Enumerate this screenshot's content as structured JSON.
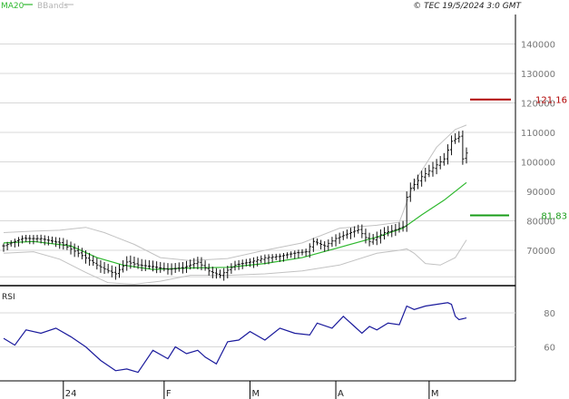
{
  "header": {
    "legend_ma": "MA20",
    "legend_bb": "BBands",
    "copyright": "© TEC 19/5/2024 3:0 GMT"
  },
  "colors": {
    "ma": "#2eb82e",
    "bb": "#c2c2c2",
    "price_bars": "#111111",
    "rsi_line": "#1a1a9c",
    "resistance": "#b00000",
    "support": "#189c18",
    "grid": "#d8d8d8",
    "panel_border": "#000000",
    "axis_text": "#777777"
  },
  "chart_data": [
    {
      "type": "ohlc",
      "title": "",
      "ylim": [
        58,
        150
      ],
      "yticks": [
        70,
        80,
        90,
        100,
        110,
        120,
        130,
        140
      ],
      "ytick_labels": [
        "70000",
        "80000",
        "90000",
        "100000",
        "110000",
        "120000",
        "130000",
        "140000"
      ],
      "x_start_label": "24",
      "xticks": [
        {
          "label": "24",
          "index": 16
        },
        {
          "label": "F",
          "index": 43
        },
        {
          "label": "M",
          "index": 66
        },
        {
          "label": "A",
          "index": 89
        },
        {
          "label": "M",
          "index": 114
        }
      ],
      "bar_count": 125,
      "key_points": [
        [
          0,
          71.5
        ],
        [
          5,
          74
        ],
        [
          10,
          74
        ],
        [
          15,
          72.5
        ],
        [
          20,
          69
        ],
        [
          25,
          65
        ],
        [
          28,
          63
        ],
        [
          30,
          62
        ],
        [
          33,
          66
        ],
        [
          36,
          65
        ],
        [
          40,
          64.5
        ],
        [
          44,
          63.5
        ],
        [
          48,
          64
        ],
        [
          52,
          66
        ],
        [
          55,
          63
        ],
        [
          58,
          61.5
        ],
        [
          62,
          65
        ],
        [
          66,
          66
        ],
        [
          70,
          67.5
        ],
        [
          74,
          68
        ],
        [
          78,
          69
        ],
        [
          81,
          69.5
        ],
        [
          83,
          73
        ],
        [
          86,
          71.5
        ],
        [
          89,
          74
        ],
        [
          92,
          75.5
        ],
        [
          95,
          77
        ],
        [
          98,
          73
        ],
        [
          102,
          76
        ],
        [
          105,
          77
        ],
        [
          107,
          78
        ],
        [
          108,
          88
        ],
        [
          109,
          91
        ],
        [
          112,
          95
        ],
        [
          115,
          98
        ],
        [
          118,
          101
        ],
        [
          120,
          107
        ],
        [
          122,
          108.5
        ],
        [
          123,
          101
        ],
        [
          124,
          103
        ]
      ],
      "ma20": {
        "name": "MA20",
        "key_points": [
          [
            0,
            72.5
          ],
          [
            8,
            73
          ],
          [
            18,
            71.5
          ],
          [
            25,
            67.5
          ],
          [
            32,
            65
          ],
          [
            40,
            63.5
          ],
          [
            50,
            64
          ],
          [
            60,
            64.2
          ],
          [
            70,
            65.5
          ],
          [
            80,
            67.5
          ],
          [
            90,
            71
          ],
          [
            100,
            74.5
          ],
          [
            107,
            77.5
          ],
          [
            112,
            82
          ],
          [
            118,
            87
          ],
          [
            124,
            93
          ]
        ]
      },
      "bb_upper": {
        "name": "BBands",
        "key_points": [
          [
            0,
            76
          ],
          [
            8,
            76.5
          ],
          [
            15,
            76.8
          ],
          [
            22,
            77.8
          ],
          [
            27,
            76
          ],
          [
            35,
            72
          ],
          [
            42,
            67.5
          ],
          [
            50,
            66.5
          ],
          [
            60,
            67.2
          ],
          [
            70,
            70
          ],
          [
            80,
            72.5
          ],
          [
            90,
            77.5
          ],
          [
            100,
            78.5
          ],
          [
            106,
            79.5
          ],
          [
            110,
            93
          ],
          [
            116,
            105
          ],
          [
            121,
            111
          ],
          [
            124,
            112.5
          ]
        ]
      },
      "bb_lower": {
        "name": "BBands",
        "key_points": [
          [
            0,
            69
          ],
          [
            8,
            69.5
          ],
          [
            15,
            67
          ],
          [
            22,
            62.5
          ],
          [
            28,
            59
          ],
          [
            35,
            58.5
          ],
          [
            42,
            59.5
          ],
          [
            50,
            61.5
          ],
          [
            60,
            61.5
          ],
          [
            70,
            62
          ],
          [
            80,
            63
          ],
          [
            90,
            65
          ],
          [
            100,
            69
          ],
          [
            106,
            70
          ],
          [
            108,
            70.5
          ],
          [
            110,
            69
          ],
          [
            113,
            65.5
          ],
          [
            117,
            65
          ],
          [
            121,
            67.5
          ],
          [
            124,
            73.5
          ]
        ]
      },
      "levels": [
        {
          "label": "121.16",
          "value": 121.16,
          "color": "resistance"
        },
        {
          "label": "81.83",
          "value": 81.83,
          "color": "support"
        }
      ]
    },
    {
      "type": "line",
      "title": "RSI",
      "ylim": [
        40,
        96
      ],
      "yticks": [
        60,
        80
      ],
      "ytick_labels": [
        "60",
        "80"
      ],
      "series": [
        {
          "name": "RSI",
          "key_points": [
            [
              0,
              65
            ],
            [
              3,
              61
            ],
            [
              6,
              70
            ],
            [
              10,
              68
            ],
            [
              14,
              71
            ],
            [
              18,
              66
            ],
            [
              22,
              60
            ],
            [
              26,
              52
            ],
            [
              30,
              46
            ],
            [
              33,
              47
            ],
            [
              36,
              45
            ],
            [
              40,
              58
            ],
            [
              44,
              53
            ],
            [
              46,
              60
            ],
            [
              49,
              56
            ],
            [
              52,
              58
            ],
            [
              54,
              54
            ],
            [
              57,
              50
            ],
            [
              60,
              63
            ],
            [
              63,
              64
            ],
            [
              66,
              69
            ],
            [
              70,
              64
            ],
            [
              74,
              71
            ],
            [
              78,
              68
            ],
            [
              82,
              67
            ],
            [
              84,
              74
            ],
            [
              88,
              71
            ],
            [
              91,
              78
            ],
            [
              94,
              72
            ],
            [
              96,
              68
            ],
            [
              98,
              72
            ],
            [
              100,
              70
            ],
            [
              103,
              74
            ],
            [
              106,
              73
            ],
            [
              108,
              84
            ],
            [
              110,
              82
            ],
            [
              113,
              84
            ],
            [
              116,
              85
            ],
            [
              119,
              86
            ],
            [
              120,
              85
            ],
            [
              121,
              78
            ],
            [
              122,
              76
            ],
            [
              124,
              77
            ]
          ]
        }
      ]
    }
  ]
}
